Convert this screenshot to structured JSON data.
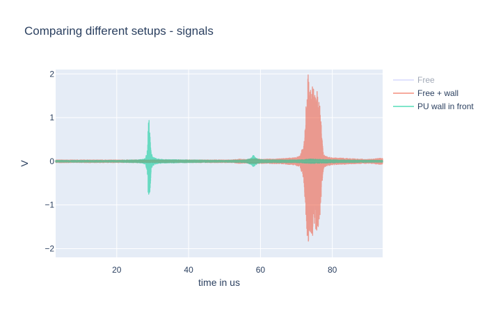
{
  "chart_data": {
    "type": "line",
    "title": "Comparing different setups - signals",
    "xlabel": "time in us",
    "ylabel": "V",
    "xlim": [
      3,
      94
    ],
    "ylim": [
      -2.2,
      2.1
    ],
    "xticks": [
      20,
      40,
      60,
      80
    ],
    "yticks": [
      -2,
      -1,
      0,
      1,
      2
    ],
    "ytick_labels": [
      "−2",
      "−1",
      "0",
      "1",
      "2"
    ],
    "grid": true,
    "legend_position": "top-right",
    "series": [
      {
        "name": "Free",
        "color": "#636efa",
        "visible": false,
        "envelope": []
      },
      {
        "name": "Free + wall",
        "color": "#EF553B",
        "visible": true,
        "envelope": [
          [
            3,
            0.03
          ],
          [
            20,
            0.03
          ],
          [
            40,
            0.03
          ],
          [
            52,
            0.03
          ],
          [
            54,
            0.05
          ],
          [
            56,
            0.04
          ],
          [
            58,
            0.06
          ],
          [
            60,
            0.05
          ],
          [
            63,
            0.05
          ],
          [
            66,
            0.06
          ],
          [
            69,
            0.08
          ],
          [
            71,
            0.12
          ],
          [
            72,
            0.4
          ],
          [
            72.5,
            1.0
          ],
          [
            73.2,
            2.05
          ],
          [
            73.8,
            1.6
          ],
          [
            74.5,
            1.8
          ],
          [
            75.2,
            1.7
          ],
          [
            75.8,
            1.6
          ],
          [
            76.5,
            1.4
          ],
          [
            77,
            0.7
          ],
          [
            77.5,
            0.2
          ],
          [
            78,
            0.12
          ],
          [
            80,
            0.08
          ],
          [
            83,
            0.07
          ],
          [
            85,
            0.06
          ],
          [
            88,
            0.05
          ],
          [
            91,
            0.05
          ],
          [
            93,
            0.07
          ],
          [
            94,
            0.07
          ]
        ]
      },
      {
        "name": "PU wall in front",
        "color": "#00cc96",
        "visible": true,
        "envelope": [
          [
            3,
            0.02
          ],
          [
            20,
            0.02
          ],
          [
            25,
            0.03
          ],
          [
            27,
            0.04
          ],
          [
            28,
            0.07
          ],
          [
            28.5,
            0.25
          ],
          [
            28.9,
            1.1
          ],
          [
            29.3,
            0.6
          ],
          [
            29.6,
            0.2
          ],
          [
            30,
            0.1
          ],
          [
            31,
            0.06
          ],
          [
            33,
            0.04
          ],
          [
            40,
            0.03
          ],
          [
            50,
            0.02
          ],
          [
            56,
            0.03
          ],
          [
            57.5,
            0.08
          ],
          [
            58,
            0.14
          ],
          [
            58.5,
            0.1
          ],
          [
            59.5,
            0.04
          ],
          [
            62,
            0.03
          ],
          [
            70,
            0.03
          ],
          [
            74,
            0.05
          ],
          [
            78,
            0.04
          ],
          [
            82,
            0.03
          ],
          [
            94,
            0.02
          ]
        ]
      }
    ]
  }
}
